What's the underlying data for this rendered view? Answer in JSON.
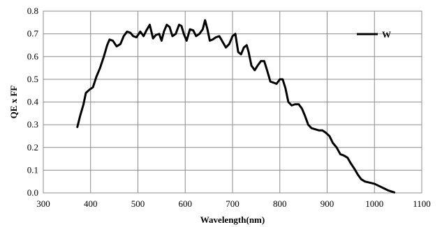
{
  "chart_data": {
    "type": "line",
    "title": "",
    "xlabel": "Wavelength(nm)",
    "ylabel": "QE x FF",
    "xlim": [
      300,
      1100
    ],
    "ylim": [
      0,
      0.8
    ],
    "x_ticks": [
      300,
      400,
      500,
      600,
      700,
      800,
      900,
      1000,
      1100
    ],
    "y_ticks": [
      0.0,
      0.1,
      0.2,
      0.3,
      0.4,
      0.5,
      0.6,
      0.7,
      0.8
    ],
    "x_tick_labels": [
      "300",
      "400",
      "500",
      "600",
      "700",
      "800",
      "900",
      "1000",
      "1100"
    ],
    "y_tick_labels": [
      "0.0",
      "0.1",
      "0.2",
      "0.3",
      "0.4",
      "0.5",
      "0.6",
      "0.7",
      "0.8"
    ],
    "grid": true,
    "legend": {
      "position": "top-right"
    },
    "series": [
      {
        "name": "W",
        "color": "#000000",
        "points": [
          [
            372,
            0.29
          ],
          [
            378,
            0.34
          ],
          [
            385,
            0.39
          ],
          [
            390,
            0.44
          ],
          [
            398,
            0.455
          ],
          [
            405,
            0.465
          ],
          [
            412,
            0.51
          ],
          [
            420,
            0.55
          ],
          [
            428,
            0.6
          ],
          [
            435,
            0.65
          ],
          [
            440,
            0.675
          ],
          [
            447,
            0.67
          ],
          [
            455,
            0.645
          ],
          [
            463,
            0.655
          ],
          [
            470,
            0.69
          ],
          [
            477,
            0.71
          ],
          [
            484,
            0.705
          ],
          [
            490,
            0.69
          ],
          [
            497,
            0.685
          ],
          [
            505,
            0.71
          ],
          [
            512,
            0.69
          ],
          [
            518,
            0.715
          ],
          [
            525,
            0.74
          ],
          [
            532,
            0.68
          ],
          [
            538,
            0.695
          ],
          [
            545,
            0.7
          ],
          [
            550,
            0.67
          ],
          [
            555,
            0.71
          ],
          [
            561,
            0.74
          ],
          [
            567,
            0.73
          ],
          [
            573,
            0.69
          ],
          [
            580,
            0.7
          ],
          [
            587,
            0.74
          ],
          [
            592,
            0.735
          ],
          [
            597,
            0.7
          ],
          [
            603,
            0.67
          ],
          [
            610,
            0.72
          ],
          [
            617,
            0.715
          ],
          [
            623,
            0.69
          ],
          [
            630,
            0.7
          ],
          [
            637,
            0.72
          ],
          [
            642,
            0.76
          ],
          [
            647,
            0.72
          ],
          [
            652,
            0.67
          ],
          [
            658,
            0.675
          ],
          [
            665,
            0.685
          ],
          [
            672,
            0.69
          ],
          [
            679,
            0.665
          ],
          [
            686,
            0.64
          ],
          [
            693,
            0.655
          ],
          [
            700,
            0.69
          ],
          [
            706,
            0.7
          ],
          [
            712,
            0.62
          ],
          [
            718,
            0.61
          ],
          [
            724,
            0.64
          ],
          [
            730,
            0.65
          ],
          [
            734,
            0.62
          ],
          [
            740,
            0.56
          ],
          [
            747,
            0.54
          ],
          [
            753,
            0.56
          ],
          [
            760,
            0.58
          ],
          [
            767,
            0.58
          ],
          [
            773,
            0.54
          ],
          [
            780,
            0.49
          ],
          [
            787,
            0.485
          ],
          [
            793,
            0.48
          ],
          [
            800,
            0.5
          ],
          [
            806,
            0.5
          ],
          [
            812,
            0.46
          ],
          [
            818,
            0.4
          ],
          [
            825,
            0.385
          ],
          [
            832,
            0.39
          ],
          [
            840,
            0.39
          ],
          [
            847,
            0.37
          ],
          [
            853,
            0.34
          ],
          [
            860,
            0.3
          ],
          [
            867,
            0.285
          ],
          [
            875,
            0.28
          ],
          [
            883,
            0.275
          ],
          [
            890,
            0.275
          ],
          [
            897,
            0.265
          ],
          [
            905,
            0.25
          ],
          [
            912,
            0.22
          ],
          [
            920,
            0.2
          ],
          [
            928,
            0.17
          ],
          [
            935,
            0.165
          ],
          [
            943,
            0.155
          ],
          [
            950,
            0.13
          ],
          [
            958,
            0.105
          ],
          [
            965,
            0.08
          ],
          [
            972,
            0.06
          ],
          [
            980,
            0.05
          ],
          [
            990,
            0.045
          ],
          [
            1000,
            0.04
          ],
          [
            1010,
            0.03
          ],
          [
            1020,
            0.02
          ],
          [
            1030,
            0.01
          ],
          [
            1042,
            0.002
          ]
        ]
      }
    ]
  }
}
